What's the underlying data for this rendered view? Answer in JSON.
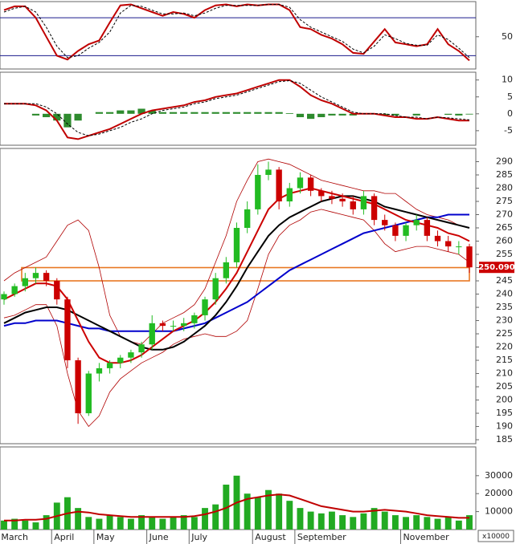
{
  "chart_data": [
    {
      "type": "line",
      "series": [
        {
          "color": "#c00000",
          "values": [
            78,
            82,
            82,
            70,
            50,
            30,
            26,
            35,
            42,
            46,
            65,
            83,
            84,
            80,
            76,
            72,
            76,
            74,
            70,
            78,
            83,
            84,
            82,
            84,
            83,
            84,
            84,
            78,
            60,
            58,
            52,
            48,
            42,
            33,
            32,
            45,
            58,
            44,
            42,
            40,
            42,
            58,
            42,
            35,
            25
          ]
        },
        {
          "color": "#000000",
          "dashed": true,
          "values": [
            76,
            80,
            82,
            76,
            60,
            40,
            28,
            30,
            38,
            44,
            55,
            75,
            83,
            82,
            78,
            74,
            74,
            75,
            72,
            75,
            80,
            83,
            83,
            83,
            83,
            84,
            84,
            81,
            68,
            60,
            55,
            50,
            45,
            37,
            33,
            40,
            52,
            48,
            43,
            41,
            41,
            52,
            47,
            38,
            28
          ]
        }
      ],
      "ylim": [
        16,
        87
      ],
      "yticks": [
        50
      ],
      "levels": [
        70,
        30
      ]
    },
    {
      "type": "line",
      "series": [
        {
          "color": "#c00000",
          "values": [
            3,
            3,
            3,
            2.5,
            1,
            -2,
            -7,
            -7.5,
            -6.5,
            -5.5,
            -4.5,
            -3,
            -1.5,
            0,
            1,
            1.5,
            2,
            2.5,
            3.5,
            4,
            5,
            5.5,
            6,
            7,
            8,
            9,
            10,
            10,
            8,
            5.5,
            4,
            3,
            1.5,
            0,
            0,
            0,
            -0.5,
            -1,
            -1,
            -1.5,
            -1.5,
            -1,
            -1.5,
            -2,
            -2
          ]
        },
        {
          "color": "#000000",
          "dashed": true,
          "values": [
            3,
            3,
            3,
            3,
            2,
            0,
            -3,
            -5.5,
            -6.5,
            -6,
            -5,
            -4,
            -2.5,
            -1.5,
            0,
            1,
            1.5,
            2,
            3,
            3.5,
            4.5,
            5,
            5.5,
            6.5,
            7.5,
            8.5,
            9.5,
            9.8,
            9,
            7,
            5,
            3.5,
            2,
            0.5,
            0,
            0,
            0,
            -0.5,
            -1,
            -1,
            -1.5,
            -1,
            -1.2,
            -1.5,
            -1.8
          ]
        }
      ],
      "histogram": {
        "color": "#2e8b2e",
        "values": [
          0,
          0,
          0,
          -0.5,
          -1,
          -2,
          -4,
          -2,
          0,
          0.5,
          0.5,
          1,
          1,
          1.5,
          1,
          0.5,
          0.5,
          0.5,
          0.5,
          0.5,
          0.5,
          0.5,
          0.5,
          0.5,
          0.5,
          0.5,
          0.5,
          0.2,
          -1,
          -1.5,
          -1,
          -0.5,
          -0.5,
          -0.5,
          0,
          0,
          -0.5,
          -0.5,
          0,
          -0.5,
          0,
          0,
          -0.3,
          -0.5,
          -0.2
        ]
      },
      "ylim": [
        -9.3,
        12.3
      ],
      "yticks": [
        10,
        5,
        0,
        -5
      ]
    },
    {
      "type": "candlestick",
      "open": [
        238,
        240,
        243,
        246,
        248,
        245,
        238,
        215,
        195,
        210,
        212,
        214,
        216,
        218,
        221,
        229,
        228,
        228,
        229,
        232,
        238,
        246,
        252,
        265,
        272,
        285,
        287,
        275,
        280,
        284,
        279,
        277,
        276,
        275,
        272,
        277,
        268,
        266,
        262,
        266,
        268,
        262,
        260,
        258,
        258
      ],
      "high": [
        241,
        244,
        248,
        250,
        249,
        246,
        239,
        216,
        211,
        214,
        215,
        217,
        219,
        222,
        232,
        230,
        230,
        231,
        233,
        239,
        248,
        254,
        267,
        275,
        289,
        290,
        288,
        282,
        286,
        285,
        280,
        279,
        278,
        277,
        279,
        278,
        270,
        267,
        267,
        270,
        269,
        264,
        262,
        260,
        259
      ],
      "low": [
        236,
        239,
        241,
        244,
        243,
        236,
        212,
        191,
        194,
        207,
        210,
        212,
        214,
        216,
        219,
        226,
        226,
        226,
        227,
        230,
        236,
        244,
        250,
        263,
        270,
        283,
        272,
        273,
        278,
        277,
        275,
        274,
        273,
        270,
        270,
        266,
        264,
        260,
        260,
        264,
        260,
        258,
        256,
        255,
        248
      ],
      "close": [
        240,
        243,
        246,
        248,
        245,
        238,
        215,
        195,
        210,
        212,
        214,
        216,
        218,
        221,
        229,
        228,
        228,
        229,
        232,
        238,
        246,
        252,
        265,
        272,
        285,
        287,
        275,
        280,
        284,
        279,
        277,
        276,
        275,
        272,
        277,
        268,
        266,
        262,
        266,
        268,
        262,
        260,
        258,
        258,
        250.09
      ],
      "up_color": "#22bb22",
      "down_color": "#cc0000",
      "last_value_label": "250.090",
      "series": [
        {
          "color": "#b00000",
          "width": 0.8,
          "values": [
            245,
            248,
            250,
            252,
            254,
            260,
            266,
            268,
            264,
            250,
            232,
            224,
            222,
            221,
            225,
            229,
            231,
            233,
            236,
            242,
            252,
            262,
            275,
            283,
            290,
            291,
            290,
            289,
            287,
            285,
            283,
            282,
            281,
            280,
            279,
            279,
            278,
            278,
            275,
            272,
            270,
            269,
            268,
            266,
            265
          ]
        },
        {
          "color": "#b00000",
          "width": 0.8,
          "values": [
            231,
            232,
            234,
            236,
            236,
            228,
            210,
            196,
            190,
            194,
            203,
            208,
            211,
            214,
            216,
            218,
            221,
            223,
            224,
            225,
            224,
            224,
            226,
            230,
            242,
            255,
            262,
            266,
            268,
            271,
            272,
            271,
            270,
            269,
            268,
            264,
            259,
            256,
            257,
            258,
            258,
            257,
            256,
            255,
            252
          ]
        },
        {
          "color": "#0000cc",
          "width": 2,
          "values": [
            228,
            229,
            229,
            230,
            230,
            230,
            229,
            228,
            227,
            227,
            226,
            226,
            226,
            226,
            226,
            226,
            226,
            227,
            228,
            229,
            231,
            233,
            235,
            237,
            240,
            243,
            246,
            249,
            251,
            253,
            255,
            257,
            259,
            261,
            263,
            264,
            265,
            266,
            267,
            268,
            269,
            269,
            270,
            270,
            270
          ]
        },
        {
          "color": "#000000",
          "width": 2,
          "values": [
            229,
            231,
            233,
            234,
            235,
            235,
            234,
            232,
            230,
            228,
            226,
            224,
            222,
            220,
            219,
            219,
            220,
            222,
            225,
            228,
            232,
            237,
            243,
            250,
            256,
            262,
            266,
            269,
            271,
            273,
            275,
            276,
            277,
            277,
            276,
            275,
            273,
            272,
            271,
            270,
            269,
            268,
            267,
            266,
            265
          ]
        },
        {
          "color": "#cc0000",
          "width": 2,
          "values": [
            238,
            240,
            242,
            244,
            244,
            243,
            238,
            230,
            222,
            216,
            214,
            214,
            215,
            217,
            220,
            223,
            226,
            228,
            230,
            233,
            237,
            242,
            248,
            256,
            264,
            272,
            276,
            278,
            279,
            280,
            279,
            278,
            277,
            276,
            275,
            274,
            272,
            270,
            268,
            267,
            266,
            265,
            263,
            262,
            260
          ]
        }
      ],
      "zone": [
        245,
        250
      ],
      "zone_color": "#e87722",
      "ylim": [
        183.5,
        295
      ],
      "yticks": [
        185,
        190,
        195,
        200,
        205,
        210,
        215,
        220,
        225,
        230,
        235,
        240,
        245,
        250,
        255,
        260,
        265,
        270,
        275,
        280,
        285,
        290
      ]
    },
    {
      "type": "bar",
      "categories": [
        "March",
        null,
        null,
        null,
        null,
        "April",
        null,
        null,
        null,
        "May",
        null,
        null,
        null,
        null,
        "June",
        null,
        null,
        null,
        "July",
        null,
        null,
        null,
        null,
        null,
        "August",
        null,
        null,
        null,
        "September",
        null,
        null,
        null,
        null,
        null,
        null,
        null,
        null,
        null,
        "November",
        null,
        null,
        null,
        null,
        null,
        null
      ],
      "values": [
        5000,
        6000,
        5000,
        4000,
        8000,
        15000,
        18000,
        12000,
        7000,
        6000,
        8000,
        7000,
        6000,
        8000,
        7000,
        6000,
        7000,
        8000,
        7000,
        12000,
        14000,
        25000,
        30000,
        20000,
        18000,
        22000,
        20000,
        16000,
        12000,
        10000,
        9000,
        10000,
        8000,
        7000,
        9000,
        12000,
        10000,
        8000,
        7000,
        8000,
        7000,
        6000,
        7000,
        5000,
        8000
      ],
      "color": "#22aa22",
      "series": [
        {
          "color": "#c00000",
          "values": [
            5000,
            5000,
            5500,
            5500,
            6000,
            7500,
            9000,
            10000,
            9500,
            8500,
            8000,
            7500,
            7000,
            7000,
            7000,
            7000,
            7000,
            7000,
            7500,
            8500,
            10000,
            12000,
            15000,
            17000,
            18000,
            19000,
            19500,
            19000,
            17000,
            15000,
            13000,
            12000,
            11000,
            10000,
            10000,
            10500,
            11000,
            10500,
            10000,
            9000,
            8000,
            7500,
            7000,
            6500,
            6500
          ]
        }
      ],
      "y_unit": "x10000",
      "ylim": [
        0,
        46000
      ],
      "yticks": [
        10000,
        20000,
        30000
      ]
    }
  ]
}
